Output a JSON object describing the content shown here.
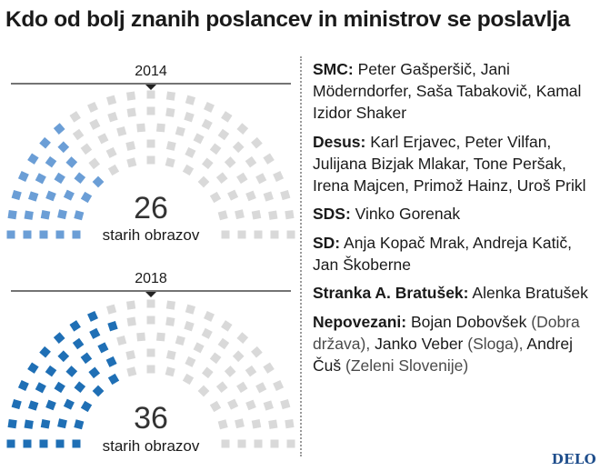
{
  "title": "Kdo od bolj znanih poslancev in ministrov se poslavlja",
  "chart_data": [
    {
      "type": "parliament",
      "year": "2014",
      "total_seats": 90,
      "highlighted_seats": 26,
      "count_label": "26",
      "caption": "starih obrazov",
      "highlight_color": "#6b9ed6",
      "base_color": "#d9d9d9"
    },
    {
      "type": "parliament",
      "year": "2018",
      "total_seats": 90,
      "highlighted_seats": 36,
      "count_label": "36",
      "caption": "starih obrazov",
      "highlight_color": "#1f6fb5",
      "base_color": "#d9d9d9"
    }
  ],
  "list": {
    "smc": {
      "party": "SMC:",
      "names": " Peter Gašperšič, Jani Möderndorfer, Saša Tabakovič, Kamal Izidor Shaker"
    },
    "desus": {
      "party": "Desus:",
      "names": " Karl Erjavec, Peter Vilfan, Julijana Bizjak Mlakar, Tone Peršak, Irena Majcen, Primož Hainz, Uroš Prikl"
    },
    "sds": {
      "party": "SDS:",
      "names": " Vinko Gorenak"
    },
    "sd": {
      "party": "SD:",
      "names": " Anja Kopač Mrak, Andreja Katič, Jan Škoberne"
    },
    "bratusek": {
      "party": "Stranka A. Bratušek:",
      "names": " Alenka Bratušek"
    },
    "nepovezani": {
      "party": "Nepovezani:",
      "name1": " Bojan Dobovšek",
      "paren1": " (Dobra država),",
      "name2": " Janko Veber",
      "paren2": " (Sloga),",
      "name3": " Andrej Čuš",
      "paren3": " (Zeleni Slovenije)"
    }
  },
  "logo": "DELO"
}
